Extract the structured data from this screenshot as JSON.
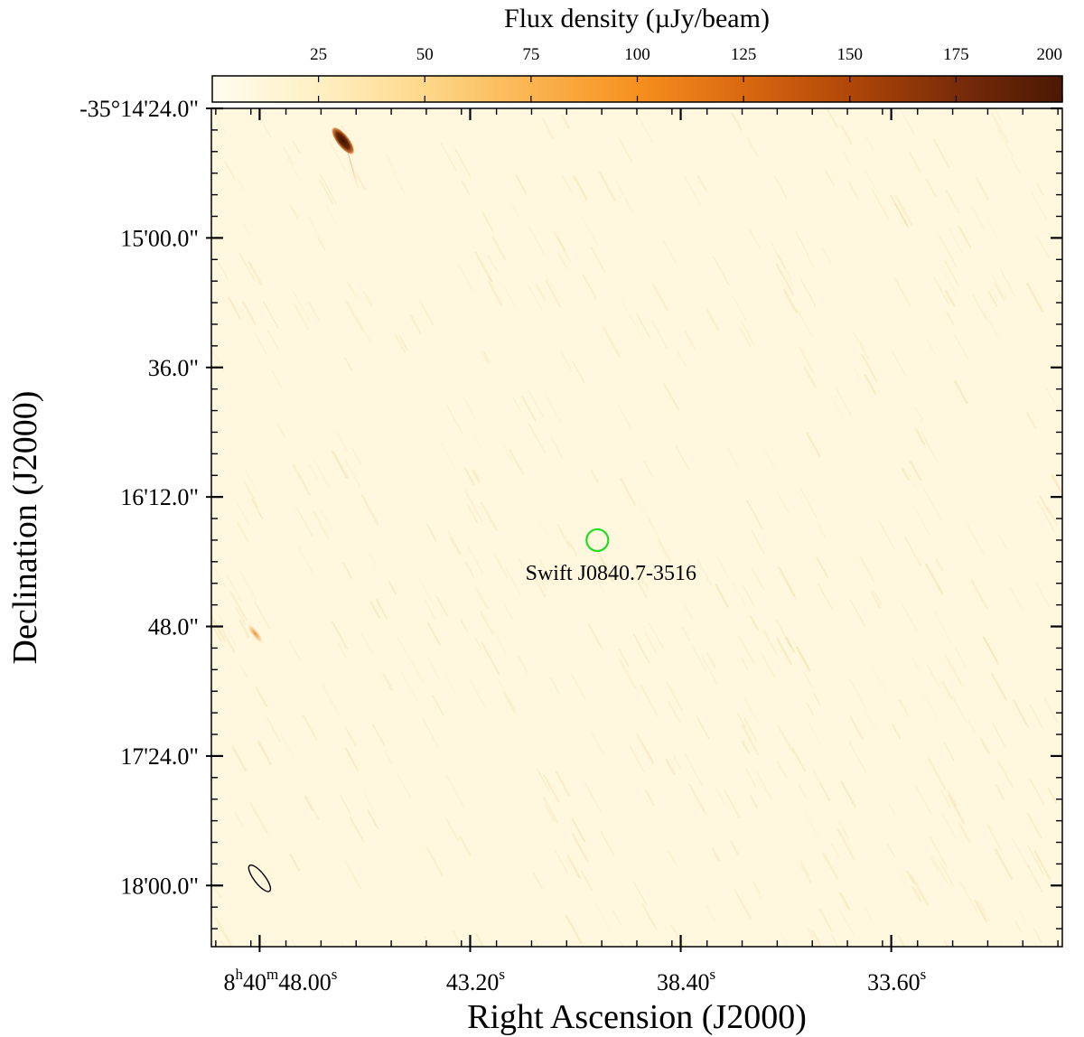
{
  "chart_data": {
    "type": "heatmap",
    "colorbar": {
      "label": "Flux density (µJy/beam)",
      "range": [
        0,
        200
      ],
      "ticks": [
        "25",
        "50",
        "75",
        "100",
        "125",
        "150",
        "175",
        "200"
      ],
      "tick_values": [
        25,
        50,
        75,
        100,
        125,
        150,
        175,
        200
      ],
      "colormap": [
        "#fffdf0",
        "#fff0c4",
        "#fdd88a",
        "#fbb450",
        "#f6901f",
        "#d96810",
        "#b04708",
        "#7a2c08",
        "#4a1804"
      ]
    },
    "xlabel": "Right Ascension (J2000)",
    "ylabel": "Declination (J2000)",
    "x_ticks": [
      {
        "h": "8",
        "m": "40",
        "s": "48.00",
        "sec": 48.0
      },
      {
        "h": "",
        "m": "",
        "s": "43.20",
        "sec": 43.2
      },
      {
        "h": "",
        "m": "",
        "s": "38.40",
        "sec": 38.4
      },
      {
        "h": "",
        "m": "",
        "s": "33.60",
        "sec": 33.6
      }
    ],
    "x_sup": {
      "h": "h",
      "m": "m",
      "s": "s"
    },
    "x_range_sec": [
      49.1,
      29.7
    ],
    "y_ticks": [
      {
        "label": "-35°14'24.0\"",
        "arcsec": -144
      },
      {
        "label": "15'00.0\"",
        "arcsec": -180
      },
      {
        "label": "36.0\"",
        "arcsec": -216
      },
      {
        "label": "16'12.0\"",
        "arcsec": -252
      },
      {
        "label": "48.0\"",
        "arcsec": -288
      },
      {
        "label": "17'24.0\"",
        "arcsec": -324
      },
      {
        "label": "18'00.0\"",
        "arcsec": -360
      }
    ],
    "y_range_arcsec": [
      -144,
      -377
    ],
    "sources": [
      {
        "ra_sec": 46.1,
        "dec_arcsec": -153,
        "peak_flux": 200,
        "kind": "bright"
      },
      {
        "ra_sec": 48.1,
        "dec_arcsec": -290,
        "peak_flux": 55,
        "kind": "faint"
      }
    ],
    "marker": {
      "label": "Swift J0840.7-3516",
      "ra_sec": 40.3,
      "dec_arcsec": -264,
      "color": "#22dd22"
    },
    "beam": {
      "ra_sec": 48.0,
      "dec_arcsec": -358,
      "shape": "ellipse"
    },
    "background_color": "#fff8df"
  }
}
